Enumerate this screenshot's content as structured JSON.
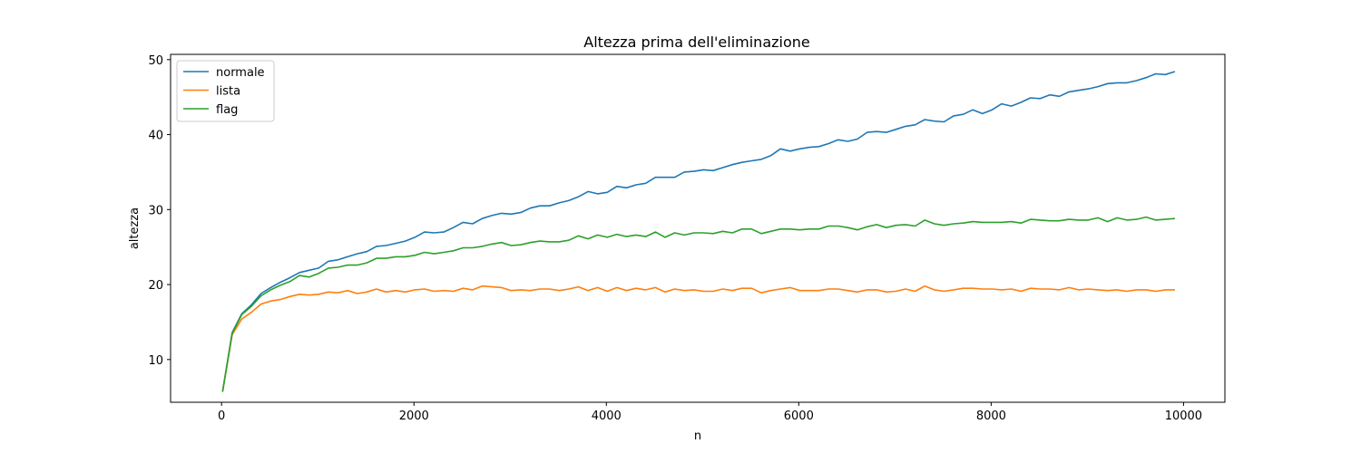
{
  "chart_data": {
    "type": "line",
    "title": "Altezza prima dell'eliminazione",
    "xlabel": "n",
    "ylabel": "altezza",
    "xlim": [
      -530,
      10430
    ],
    "ylim": [
      4.3,
      50.7
    ],
    "xticks": [
      0,
      2000,
      4000,
      6000,
      8000,
      10000
    ],
    "yticks": [
      10,
      20,
      30,
      40,
      50
    ],
    "grid": false,
    "legend_position": "top-left",
    "x": [
      10,
      110,
      210,
      310,
      410,
      510,
      610,
      710,
      810,
      910,
      1010,
      1110,
      1210,
      1310,
      1410,
      1510,
      1610,
      1710,
      1810,
      1910,
      2010,
      2110,
      2210,
      2310,
      2410,
      2510,
      2610,
      2710,
      2810,
      2910,
      3010,
      3110,
      3210,
      3310,
      3410,
      3510,
      3610,
      3710,
      3810,
      3910,
      4010,
      4110,
      4210,
      4310,
      4410,
      4510,
      4610,
      4710,
      4810,
      4910,
      5010,
      5110,
      5210,
      5310,
      5410,
      5510,
      5610,
      5710,
      5810,
      5910,
      6010,
      6110,
      6210,
      6310,
      6410,
      6510,
      6610,
      6710,
      6810,
      6910,
      7010,
      7110,
      7210,
      7310,
      7410,
      7510,
      7610,
      7710,
      7810,
      7910,
      8010,
      8110,
      8210,
      8310,
      8410,
      8510,
      8610,
      8710,
      8810,
      8910,
      9010,
      9110,
      9210,
      9310,
      9410,
      9510,
      9610,
      9710,
      9810,
      9910
    ],
    "series": [
      {
        "name": "normale",
        "color": "#1f77b4",
        "values": [
          5.7,
          13.6,
          16.1,
          17.3,
          18.8,
          19.6,
          20.3,
          20.9,
          21.6,
          21.9,
          22.2,
          23.1,
          23.3,
          23.7,
          24.1,
          24.4,
          25.1,
          25.2,
          25.5,
          25.8,
          26.3,
          27.0,
          26.9,
          27.0,
          27.6,
          28.3,
          28.1,
          28.8,
          29.2,
          29.5,
          29.4,
          29.6,
          30.2,
          30.5,
          30.5,
          30.9,
          31.2,
          31.7,
          32.4,
          32.1,
          32.3,
          33.1,
          32.9,
          33.3,
          33.5,
          34.3,
          34.3,
          34.3,
          35.0,
          35.1,
          35.3,
          35.2,
          35.6,
          36.0,
          36.3,
          36.5,
          36.7,
          37.2,
          38.1,
          37.8,
          38.1,
          38.3,
          38.4,
          38.8,
          39.3,
          39.1,
          39.4,
          40.3,
          40.4,
          40.3,
          40.7,
          41.1,
          41.3,
          42.0,
          41.8,
          41.7,
          42.5,
          42.7,
          43.3,
          42.8,
          43.3,
          44.1,
          43.8,
          44.3,
          44.9,
          44.8,
          45.3,
          45.1,
          45.7,
          45.9,
          46.1,
          46.4,
          46.8,
          46.9,
          46.9,
          47.2,
          47.6,
          48.1,
          48.0,
          48.4
        ]
      },
      {
        "name": "lista",
        "color": "#ff7f0e",
        "values": [
          5.7,
          13.3,
          15.4,
          16.3,
          17.4,
          17.8,
          18.0,
          18.4,
          18.7,
          18.6,
          18.7,
          19.0,
          18.9,
          19.2,
          18.8,
          19.0,
          19.4,
          19.0,
          19.2,
          19.0,
          19.3,
          19.4,
          19.1,
          19.2,
          19.1,
          19.5,
          19.3,
          19.8,
          19.7,
          19.6,
          19.2,
          19.3,
          19.2,
          19.4,
          19.4,
          19.2,
          19.4,
          19.7,
          19.2,
          19.6,
          19.1,
          19.6,
          19.2,
          19.5,
          19.3,
          19.6,
          19.0,
          19.4,
          19.2,
          19.3,
          19.1,
          19.1,
          19.4,
          19.2,
          19.5,
          19.5,
          18.9,
          19.2,
          19.4,
          19.6,
          19.2,
          19.2,
          19.2,
          19.4,
          19.4,
          19.2,
          19.0,
          19.3,
          19.3,
          19.0,
          19.1,
          19.4,
          19.1,
          19.8,
          19.3,
          19.1,
          19.3,
          19.5,
          19.5,
          19.4,
          19.4,
          19.3,
          19.4,
          19.1,
          19.5,
          19.4,
          19.4,
          19.3,
          19.6,
          19.3,
          19.4,
          19.3,
          19.2,
          19.3,
          19.1,
          19.3,
          19.3,
          19.1,
          19.3,
          19.3
        ]
      },
      {
        "name": "flag",
        "color": "#2ca02c",
        "values": [
          5.7,
          13.5,
          16.0,
          17.1,
          18.5,
          19.3,
          19.9,
          20.4,
          21.2,
          21.0,
          21.5,
          22.2,
          22.3,
          22.6,
          22.6,
          22.9,
          23.5,
          23.5,
          23.7,
          23.7,
          23.9,
          24.3,
          24.1,
          24.3,
          24.5,
          24.9,
          24.9,
          25.1,
          25.4,
          25.6,
          25.2,
          25.3,
          25.6,
          25.8,
          25.7,
          25.7,
          25.9,
          26.5,
          26.1,
          26.6,
          26.3,
          26.7,
          26.4,
          26.6,
          26.4,
          27.0,
          26.3,
          26.9,
          26.6,
          26.9,
          26.9,
          26.8,
          27.1,
          26.9,
          27.4,
          27.4,
          26.8,
          27.1,
          27.4,
          27.4,
          27.3,
          27.4,
          27.4,
          27.8,
          27.8,
          27.6,
          27.3,
          27.7,
          28.0,
          27.6,
          27.9,
          28.0,
          27.8,
          28.6,
          28.1,
          27.9,
          28.1,
          28.2,
          28.4,
          28.3,
          28.3,
          28.3,
          28.4,
          28.2,
          28.7,
          28.6,
          28.5,
          28.5,
          28.7,
          28.6,
          28.6,
          28.9,
          28.4,
          28.9,
          28.6,
          28.7,
          29.0,
          28.6,
          28.7,
          28.8
        ]
      }
    ]
  }
}
